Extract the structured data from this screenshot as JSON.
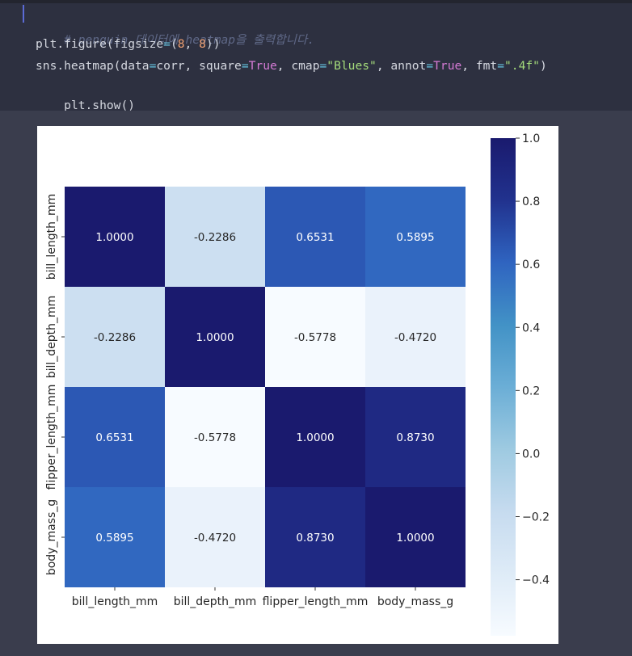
{
  "code": {
    "comment": "# penguin 데이터에 heatmap을 출력합니다.",
    "line2": {
      "t1": "plt.figure(figsize",
      "op": "=",
      "t2": "(",
      "n1": "8",
      "t3": ", ",
      "n2": "8",
      "t4": "))"
    },
    "line3": {
      "t1": "sns.heatmap(data",
      "op1": "=",
      "t2": "corr, square",
      "op2": "=",
      "k1": "True",
      "t3": ", cmap",
      "op3": "=",
      "s1": "\"Blues\"",
      "t4": ", annot",
      "op4": "=",
      "k2": "True",
      "t5": ", fmt",
      "op5": "=",
      "s2": "\".4f\"",
      "t6": ")"
    },
    "line4": "plt.show()"
  },
  "chart_data": {
    "type": "heatmap",
    "rows": [
      "bill_length_mm",
      "bill_depth_mm",
      "flipper_length_mm",
      "body_mass_g"
    ],
    "columns": [
      "bill_length_mm",
      "bill_depth_mm",
      "flipper_length_mm",
      "body_mass_g"
    ],
    "values": [
      [
        1.0,
        -0.2286,
        0.6531,
        0.5895
      ],
      [
        -0.2286,
        1.0,
        -0.5778,
        -0.472
      ],
      [
        0.6531,
        -0.5778,
        1.0,
        0.873
      ],
      [
        0.5895,
        -0.472,
        0.873,
        1.0
      ]
    ],
    "annotation_format": ".4f",
    "colormap": "Blues",
    "colorbar": {
      "range": [
        -0.5778,
        1.0
      ],
      "ticks": [
        1.0,
        0.8,
        0.6,
        0.4,
        0.2,
        0.0,
        -0.2,
        -0.4
      ],
      "tick_labels": [
        "1.0",
        "0.8",
        "0.6",
        "0.4",
        "0.2",
        "0.0",
        "−0.2",
        "−0.4"
      ]
    }
  }
}
